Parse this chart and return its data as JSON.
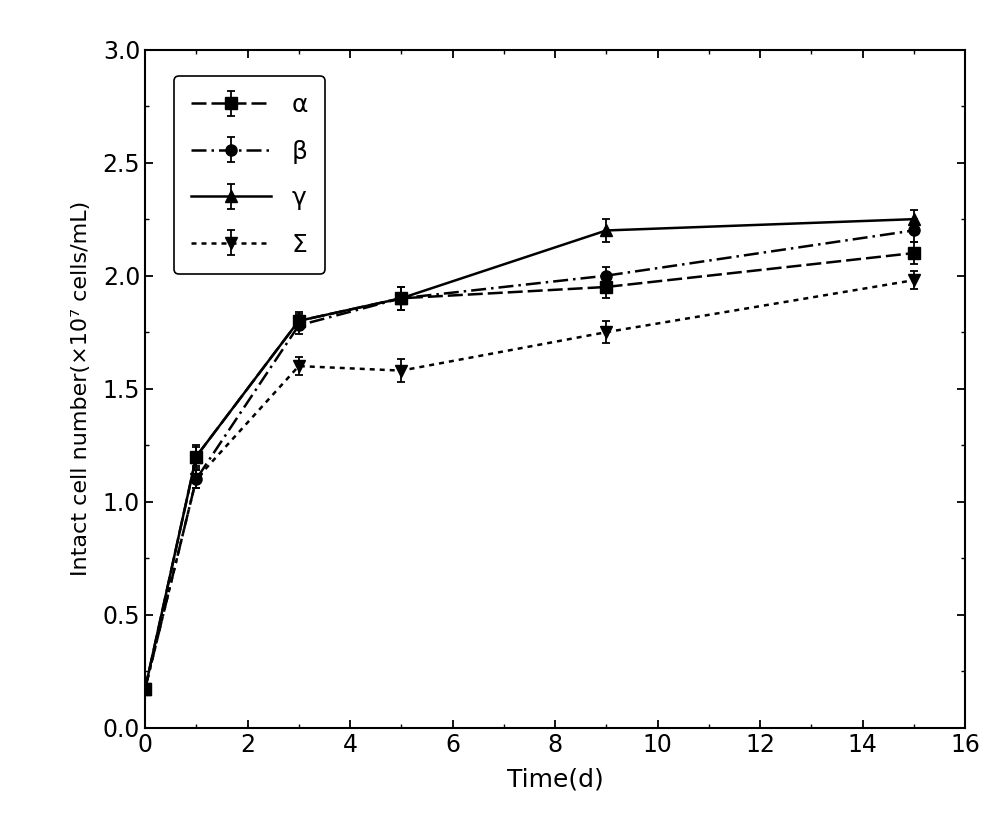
{
  "x": [
    0,
    1,
    3,
    5,
    9,
    15
  ],
  "alpha_y": [
    0.17,
    1.2,
    1.8,
    1.9,
    1.95,
    2.1
  ],
  "alpha_err": [
    0.01,
    0.05,
    0.04,
    0.05,
    0.05,
    0.05
  ],
  "beta_y": [
    0.17,
    1.1,
    1.78,
    1.9,
    2.0,
    2.2
  ],
  "beta_err": [
    0.01,
    0.04,
    0.04,
    0.05,
    0.04,
    0.05
  ],
  "gamma_y": [
    0.17,
    1.2,
    1.8,
    1.9,
    2.2,
    2.25
  ],
  "gamma_err": [
    0.01,
    0.04,
    0.03,
    0.05,
    0.05,
    0.04
  ],
  "sigma_y": [
    0.17,
    1.1,
    1.6,
    1.58,
    1.75,
    1.98
  ],
  "sigma_err": [
    0.01,
    0.04,
    0.04,
    0.05,
    0.05,
    0.04
  ],
  "xlabel": "Time(d)",
  "ylabel": "Intact cell number(×10⁷ cells/mL)",
  "xlim": [
    0,
    16
  ],
  "ylim": [
    0.0,
    3.0
  ],
  "xticks": [
    0,
    2,
    4,
    6,
    8,
    10,
    12,
    14,
    16
  ],
  "yticks": [
    0.0,
    0.5,
    1.0,
    1.5,
    2.0,
    2.5,
    3.0
  ],
  "legend_labels": [
    "α",
    "β",
    "γ",
    "Σ"
  ],
  "line_color": "#000000",
  "marker_size": 8,
  "linewidth": 1.8,
  "font_size": 18,
  "tick_labelsize": 17
}
